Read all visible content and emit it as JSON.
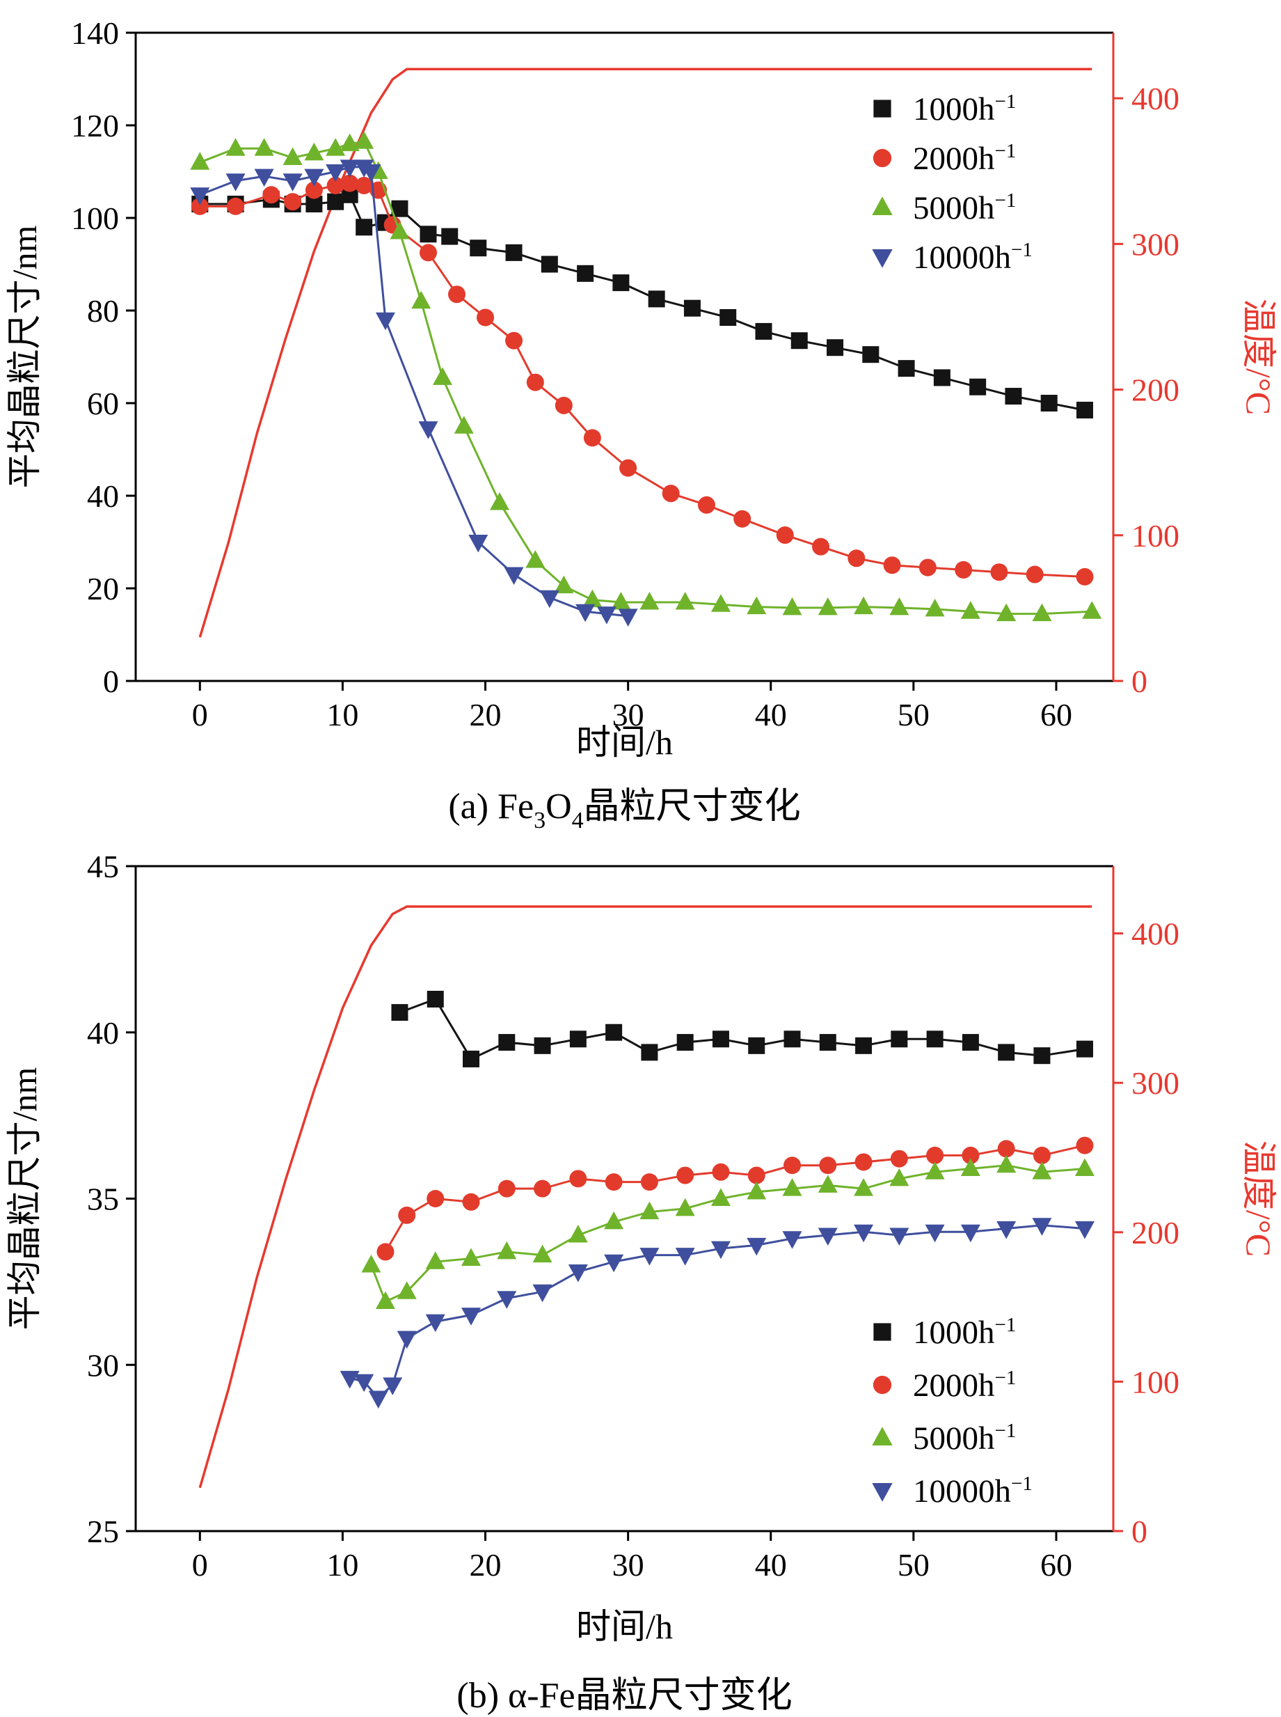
{
  "page": {
    "background": "#ffffff"
  },
  "chart_data": [
    {
      "id": "a",
      "type": "line",
      "caption_segments": [
        {
          "t": "(a) Fe"
        },
        {
          "t": "3",
          "sub": true
        },
        {
          "t": "O"
        },
        {
          "t": "4",
          "sub": true
        },
        {
          "t": "晶粒尺寸变化"
        }
      ],
      "xlabel": "时间/h",
      "ylabel_left": "平均晶粒尺寸/nm",
      "ylabel_right": "温度/°C",
      "xlim": [
        -4.5,
        64
      ],
      "ylim_left": [
        0,
        140
      ],
      "ylim_right": [
        0,
        445
      ],
      "xticks": [
        0,
        10,
        20,
        30,
        40,
        50,
        60
      ],
      "yticks_left": [
        0,
        20,
        40,
        60,
        80,
        100,
        120,
        140
      ],
      "yticks_right": [
        0,
        100,
        200,
        300,
        400
      ],
      "legend_position": "inside-top-right",
      "grid": false,
      "series": [
        {
          "name": "1000h",
          "sup": "−1",
          "marker": "square",
          "color": "#141414",
          "points": [
            [
              0,
              103
            ],
            [
              2.5,
              103
            ],
            [
              5,
              104
            ],
            [
              6.5,
              103
            ],
            [
              8,
              103
            ],
            [
              9.5,
              103.5
            ],
            [
              10.5,
              105
            ],
            [
              11.5,
              98
            ],
            [
              13,
              99
            ],
            [
              14,
              102
            ],
            [
              16,
              96.5
            ],
            [
              17.5,
              96
            ],
            [
              19.5,
              93.5
            ],
            [
              22,
              92.5
            ],
            [
              24.5,
              90
            ],
            [
              27,
              88
            ],
            [
              29.5,
              86
            ],
            [
              32,
              82.5
            ],
            [
              34.5,
              80.5
            ],
            [
              37,
              78.5
            ],
            [
              39.5,
              75.5
            ],
            [
              42,
              73.5
            ],
            [
              44.5,
              72
            ],
            [
              47,
              70.5
            ],
            [
              49.5,
              67.5
            ],
            [
              52,
              65.5
            ],
            [
              54.5,
              63.5
            ],
            [
              57,
              61.5
            ],
            [
              59.5,
              60
            ],
            [
              62,
              58.5
            ]
          ]
        },
        {
          "name": "2000h",
          "sup": "−1",
          "marker": "circle",
          "color": "#e23b2c",
          "points": [
            [
              0,
              102.5
            ],
            [
              2.5,
              102.5
            ],
            [
              5,
              105
            ],
            [
              6.5,
              103.5
            ],
            [
              8,
              106
            ],
            [
              9.5,
              107
            ],
            [
              10.5,
              107.5
            ],
            [
              11.5,
              107
            ],
            [
              12.5,
              106
            ],
            [
              13.5,
              98.5
            ],
            [
              16,
              92.5
            ],
            [
              18,
              83.5
            ],
            [
              20,
              78.5
            ],
            [
              22,
              73.5
            ],
            [
              23.5,
              64.5
            ],
            [
              25.5,
              59.5
            ],
            [
              27.5,
              52.5
            ],
            [
              30,
              46
            ],
            [
              33,
              40.5
            ],
            [
              35.5,
              38
            ],
            [
              38,
              35
            ],
            [
              41,
              31.5
            ],
            [
              43.5,
              29
            ],
            [
              46,
              26.5
            ],
            [
              48.5,
              25
            ],
            [
              51,
              24.5
            ],
            [
              53.5,
              24
            ],
            [
              56,
              23.5
            ],
            [
              58.5,
              23
            ],
            [
              62,
              22.5
            ]
          ]
        },
        {
          "name": "5000h",
          "sup": "−1",
          "marker": "triangle-up",
          "color": "#6fb32b",
          "points": [
            [
              0,
              112
            ],
            [
              2.5,
              115
            ],
            [
              4.5,
              115
            ],
            [
              6.5,
              113
            ],
            [
              8,
              114
            ],
            [
              9.5,
              115
            ],
            [
              10.5,
              116
            ],
            [
              11.5,
              116.5
            ],
            [
              12.5,
              110
            ],
            [
              14,
              97
            ],
            [
              15.5,
              82
            ],
            [
              17,
              65.5
            ],
            [
              18.5,
              55
            ],
            [
              21,
              38.5
            ],
            [
              23.5,
              26
            ],
            [
              25.5,
              20.5
            ],
            [
              27.5,
              17.5
            ],
            [
              29.5,
              17
            ],
            [
              31.5,
              17
            ],
            [
              34,
              17
            ],
            [
              36.5,
              16.5
            ],
            [
              39,
              16
            ],
            [
              41.5,
              15.8
            ],
            [
              44,
              15.8
            ],
            [
              46.5,
              16
            ],
            [
              49,
              15.8
            ],
            [
              51.5,
              15.5
            ],
            [
              54,
              15
            ],
            [
              56.5,
              14.5
            ],
            [
              59,
              14.5
            ],
            [
              62.5,
              15
            ]
          ]
        },
        {
          "name": "10000h",
          "sup": "−1",
          "marker": "triangle-down",
          "color": "#3f4f9d",
          "points": [
            [
              0,
              105
            ],
            [
              2.5,
              108
            ],
            [
              4.5,
              109
            ],
            [
              6.5,
              108
            ],
            [
              8,
              109
            ],
            [
              9.5,
              110
            ],
            [
              10.5,
              111
            ],
            [
              11.5,
              111
            ],
            [
              12,
              110
            ],
            [
              13,
              78
            ],
            [
              16,
              54.5
            ],
            [
              19.5,
              30
            ],
            [
              22,
              23
            ],
            [
              24.5,
              18
            ],
            [
              27,
              15
            ],
            [
              28.5,
              14.5
            ],
            [
              30,
              14
            ]
          ]
        }
      ],
      "temperature_line": {
        "color": "#e8392f",
        "axis": "right",
        "points": [
          [
            0,
            30
          ],
          [
            2,
            95
          ],
          [
            4,
            170
          ],
          [
            6,
            235
          ],
          [
            8,
            295
          ],
          [
            10,
            345
          ],
          [
            12,
            390
          ],
          [
            13.5,
            413
          ],
          [
            14.5,
            420
          ],
          [
            62.5,
            420
          ]
        ]
      }
    },
    {
      "id": "b",
      "type": "line",
      "caption_segments": [
        {
          "t": "(b) α-Fe晶粒尺寸变化"
        }
      ],
      "xlabel": "时间/h",
      "ylabel_left": "平均晶粒尺寸/nm",
      "ylabel_right": "温度/°C",
      "xlim": [
        -4.5,
        64
      ],
      "ylim_left": [
        25,
        45
      ],
      "ylim_right": [
        0,
        445
      ],
      "xticks": [
        0,
        10,
        20,
        30,
        40,
        50,
        60
      ],
      "yticks_left": [
        25,
        30,
        35,
        40,
        45
      ],
      "yticks_right": [
        0,
        100,
        200,
        300,
        400
      ],
      "legend_position": "inside-bottom-right",
      "grid": false,
      "series": [
        {
          "name": "1000h",
          "sup": "−1",
          "marker": "square",
          "color": "#141414",
          "points": [
            [
              14,
              40.6
            ],
            [
              16.5,
              41.0
            ],
            [
              19,
              39.2
            ],
            [
              21.5,
              39.7
            ],
            [
              24,
              39.6
            ],
            [
              26.5,
              39.8
            ],
            [
              29,
              40.0
            ],
            [
              31.5,
              39.4
            ],
            [
              34,
              39.7
            ],
            [
              36.5,
              39.8
            ],
            [
              39,
              39.6
            ],
            [
              41.5,
              39.8
            ],
            [
              44,
              39.7
            ],
            [
              46.5,
              39.6
            ],
            [
              49,
              39.8
            ],
            [
              51.5,
              39.8
            ],
            [
              54,
              39.7
            ],
            [
              56.5,
              39.4
            ],
            [
              59,
              39.3
            ],
            [
              62,
              39.5
            ]
          ]
        },
        {
          "name": "2000h",
          "sup": "−1",
          "marker": "circle",
          "color": "#e23b2c",
          "points": [
            [
              13,
              33.4
            ],
            [
              14.5,
              34.5
            ],
            [
              16.5,
              35.0
            ],
            [
              19,
              34.9
            ],
            [
              21.5,
              35.3
            ],
            [
              24,
              35.3
            ],
            [
              26.5,
              35.6
            ],
            [
              29,
              35.5
            ],
            [
              31.5,
              35.5
            ],
            [
              34,
              35.7
            ],
            [
              36.5,
              35.8
            ],
            [
              39,
              35.7
            ],
            [
              41.5,
              36.0
            ],
            [
              44,
              36.0
            ],
            [
              46.5,
              36.1
            ],
            [
              49,
              36.2
            ],
            [
              51.5,
              36.3
            ],
            [
              54,
              36.3
            ],
            [
              56.5,
              36.5
            ],
            [
              59,
              36.3
            ],
            [
              62,
              36.6
            ]
          ]
        },
        {
          "name": "5000h",
          "sup": "−1",
          "marker": "triangle-up",
          "color": "#6fb32b",
          "points": [
            [
              12,
              33.0
            ],
            [
              13,
              31.9
            ],
            [
              14.5,
              32.2
            ],
            [
              16.5,
              33.1
            ],
            [
              19,
              33.2
            ],
            [
              21.5,
              33.4
            ],
            [
              24,
              33.3
            ],
            [
              26.5,
              33.9
            ],
            [
              29,
              34.3
            ],
            [
              31.5,
              34.6
            ],
            [
              34,
              34.7
            ],
            [
              36.5,
              35.0
            ],
            [
              39,
              35.2
            ],
            [
              41.5,
              35.3
            ],
            [
              44,
              35.4
            ],
            [
              46.5,
              35.3
            ],
            [
              49,
              35.6
            ],
            [
              51.5,
              35.8
            ],
            [
              54,
              35.9
            ],
            [
              56.5,
              36.0
            ],
            [
              59,
              35.8
            ],
            [
              62,
              35.9
            ]
          ]
        },
        {
          "name": "10000h",
          "sup": "−1",
          "marker": "triangle-down",
          "color": "#3f4f9d",
          "points": [
            [
              10.5,
              29.6
            ],
            [
              11.5,
              29.5
            ],
            [
              12.5,
              29.0
            ],
            [
              13.5,
              29.4
            ],
            [
              14.5,
              30.8
            ],
            [
              16.5,
              31.3
            ],
            [
              19,
              31.5
            ],
            [
              21.5,
              32.0
            ],
            [
              24,
              32.2
            ],
            [
              26.5,
              32.8
            ],
            [
              29,
              33.1
            ],
            [
              31.5,
              33.3
            ],
            [
              34,
              33.3
            ],
            [
              36.5,
              33.5
            ],
            [
              39,
              33.6
            ],
            [
              41.5,
              33.8
            ],
            [
              44,
              33.9
            ],
            [
              46.5,
              34.0
            ],
            [
              49,
              33.9
            ],
            [
              51.5,
              34.0
            ],
            [
              54,
              34.0
            ],
            [
              56.5,
              34.1
            ],
            [
              59,
              34.2
            ],
            [
              62,
              34.1
            ]
          ]
        }
      ],
      "temperature_line": {
        "color": "#e8392f",
        "axis": "right",
        "points": [
          [
            0,
            29
          ],
          [
            2,
            95
          ],
          [
            4,
            170
          ],
          [
            6,
            235
          ],
          [
            8,
            295
          ],
          [
            10,
            350
          ],
          [
            12,
            392
          ],
          [
            13.5,
            413
          ],
          [
            14.5,
            418
          ],
          [
            62.5,
            418
          ]
        ]
      }
    }
  ]
}
